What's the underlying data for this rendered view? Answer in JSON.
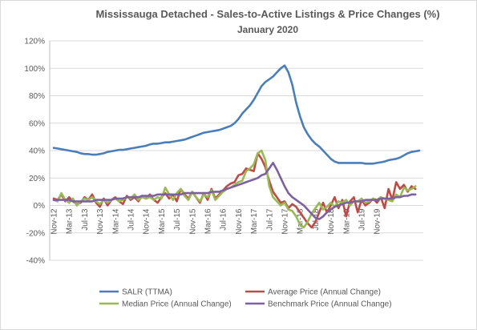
{
  "chart_data": {
    "type": "line",
    "title": "Mississauga Detached - Sales-to-Active Listings & Price Changes (%)",
    "subtitle": "January 2020",
    "xlabel": "",
    "ylabel": "",
    "ylim": [
      -40,
      120
    ],
    "y_ticks": [
      "-40%",
      "-20%",
      "0%",
      "20%",
      "40%",
      "60%",
      "80%",
      "100%",
      "120%"
    ],
    "y_tick_values": [
      -40,
      -20,
      0,
      20,
      40,
      60,
      80,
      100,
      120
    ],
    "x_tick_labels": [
      "Nov-12",
      "Mar-13",
      "Jul-13",
      "Nov-13",
      "Mar-14",
      "Jul-14",
      "Nov-14",
      "Mar-15",
      "Jul-15",
      "Nov-15",
      "Mar-16",
      "Jul-16",
      "Nov-16",
      "Mar-17",
      "Jul-17",
      "Nov-17",
      "Mar-18",
      "Jul-18",
      "Nov-18",
      "Mar-19",
      "Jul-19",
      "Nov-19"
    ],
    "x_start": "Nov-12",
    "grid": true,
    "legend_position": "bottom",
    "series": [
      {
        "name": "SALR (TTMA)",
        "color": "#4a7ebb",
        "values": [
          42,
          41.5,
          41,
          40.5,
          40,
          39.5,
          39,
          38,
          37.5,
          37.5,
          37,
          37,
          37.5,
          38,
          39,
          39.5,
          40,
          40.5,
          40.5,
          41,
          41.5,
          42,
          42.5,
          43,
          43.5,
          44.5,
          45,
          45,
          45.5,
          46,
          46,
          46.5,
          47,
          47.5,
          48,
          49,
          50,
          51,
          52,
          53,
          53.5,
          54,
          54.5,
          55,
          56,
          57,
          58,
          60,
          63,
          67,
          70,
          73,
          77,
          82,
          87,
          90,
          92,
          94,
          97,
          100,
          102,
          97,
          88,
          75,
          65,
          57,
          52,
          48,
          45,
          43,
          40,
          37,
          34,
          32,
          31,
          31,
          31,
          31,
          31,
          31,
          31,
          30.5,
          30.5,
          30.5,
          31,
          31.5,
          32,
          33,
          33.5,
          34,
          35,
          36.5,
          38,
          39,
          39.5,
          40
        ]
      },
      {
        "name": "Average Price (Annual Change)",
        "color": "#be4b48",
        "values": [
          5,
          4,
          8,
          3,
          6,
          3,
          1,
          2,
          6,
          4,
          8,
          2,
          -1,
          5,
          0,
          4,
          6,
          3,
          1,
          7,
          4,
          6,
          3,
          7,
          5,
          8,
          4,
          2,
          6,
          9,
          5,
          8,
          3,
          12,
          8,
          5,
          10,
          6,
          2,
          9,
          4,
          12,
          5,
          8,
          11,
          14,
          16,
          17,
          22,
          23,
          27,
          26,
          25,
          38,
          34,
          28,
          18,
          10,
          6,
          2,
          3,
          -2,
          1,
          -1,
          -5,
          -9,
          -13,
          -16,
          -12,
          -5,
          2,
          -5,
          0,
          6,
          -2,
          4,
          -8,
          3,
          6,
          -5,
          4,
          0,
          2,
          5,
          2,
          6,
          -2,
          12,
          4,
          17,
          12,
          15,
          10,
          14,
          12
        ]
      },
      {
        "name": "Median Price (Annual Change)",
        "color": "#98b954",
        "values": [
          4,
          3,
          9,
          4,
          2,
          5,
          0,
          3,
          5,
          4,
          6,
          3,
          1,
          4,
          2,
          4,
          5,
          3,
          4,
          6,
          5,
          8,
          4,
          6,
          5,
          6,
          4,
          6,
          5,
          13,
          8,
          4,
          9,
          12,
          7,
          4,
          10,
          6,
          3,
          8,
          6,
          11,
          4,
          7,
          10,
          12,
          13,
          15,
          17,
          18,
          25,
          27,
          30,
          38,
          40,
          33,
          14,
          6,
          3,
          0,
          2,
          -3,
          -4,
          -8,
          -14,
          -16,
          -12,
          -6,
          -2,
          2,
          -3,
          -1,
          2,
          -1,
          3,
          2,
          4,
          0,
          3,
          3,
          5,
          2,
          3,
          5,
          4,
          6,
          5,
          4,
          3,
          8,
          6,
          13,
          11,
          12,
          14
        ]
      },
      {
        "name": "Benchmark Price (Annual Change)",
        "color": "#7d60a0",
        "values": [
          4,
          4,
          4,
          4,
          4,
          3,
          3,
          3,
          3,
          3,
          3,
          4,
          4,
          4,
          4,
          4,
          5,
          5,
          5,
          6,
          6,
          6,
          6,
          7,
          7,
          7,
          7,
          8,
          8,
          8,
          8,
          8,
          8,
          8,
          9,
          9,
          9,
          9,
          9,
          9,
          9,
          10,
          10,
          10,
          11,
          12,
          13,
          14,
          15,
          16,
          17,
          18,
          19,
          20,
          22,
          23,
          27,
          31,
          26,
          20,
          14,
          9,
          6,
          4,
          2,
          0,
          -3,
          -6,
          -9,
          -10,
          -8,
          -5,
          -3,
          -1,
          0,
          1,
          2,
          2,
          3,
          3,
          3,
          4,
          4,
          4,
          4,
          5,
          5,
          5,
          5,
          6,
          6,
          7,
          7,
          8,
          8
        ]
      }
    ]
  }
}
